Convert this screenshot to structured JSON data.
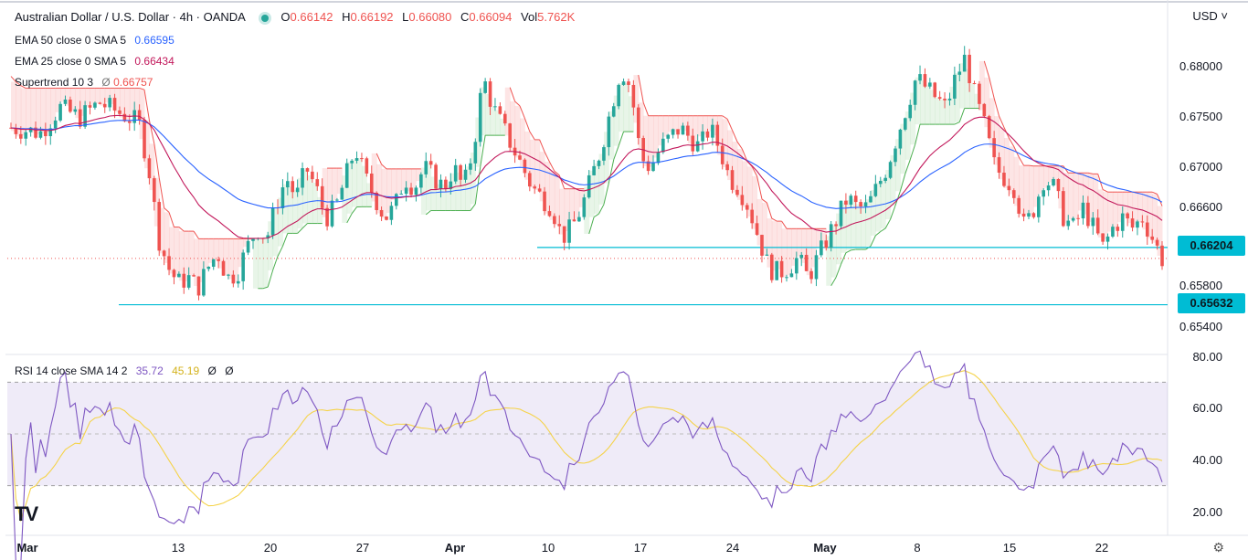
{
  "header": {
    "symbol": "Australian Dollar / U.S. Dollar · 4h · OANDA",
    "open_label": "O",
    "open": "0.66142",
    "high_label": "H",
    "high": "0.66192",
    "low_label": "L",
    "low": "0.66080",
    "close_label": "C",
    "close": "0.66094",
    "vol_label": "Vol",
    "vol": "5.762K",
    "currency": "USD"
  },
  "indicators": {
    "ema50": {
      "label": "EMA 50 close 0 SMA 5",
      "value": "0.66595",
      "color": "#2962ff"
    },
    "ema25": {
      "label": "EMA 25 close 0 SMA 5",
      "value": "0.66434",
      "color": "#c2185b"
    },
    "supertrend": {
      "label": "Supertrend 10 3",
      "value": "0.66757",
      "glyph": "Ø",
      "up_color": "#4caf50",
      "down_color": "#ef5350"
    }
  },
  "rsi": {
    "label": "RSI 14 close SMA 14 2",
    "rsi_value": "35.72",
    "sma_value": "45.19",
    "extra1": "Ø",
    "extra2": "Ø",
    "line_color": "#7e57c2",
    "sma_color": "#f5d34a",
    "band": [
      30,
      70
    ],
    "axis_labels": [
      "80.00",
      "60.00",
      "40.00",
      "20.00"
    ]
  },
  "price_axis": {
    "labels": [
      "0.68000",
      "0.67500",
      "0.67000",
      "0.66600",
      "0.65800",
      "0.65400"
    ],
    "tags": [
      {
        "value": "0.66204",
        "color": "#00bcd4"
      },
      {
        "value": "0.65632",
        "color": "#00bcd4"
      }
    ]
  },
  "time_axis": {
    "labels": [
      {
        "text": "Mar",
        "bold": true
      },
      {
        "text": "13",
        "bold": false
      },
      {
        "text": "20",
        "bold": false
      },
      {
        "text": "27",
        "bold": false
      },
      {
        "text": "Apr",
        "bold": true
      },
      {
        "text": "10",
        "bold": false
      },
      {
        "text": "17",
        "bold": false
      },
      {
        "text": "24",
        "bold": false
      },
      {
        "text": "May",
        "bold": true
      },
      {
        "text": "8",
        "bold": false
      },
      {
        "text": "15",
        "bold": false
      },
      {
        "text": "22",
        "bold": false
      }
    ]
  },
  "chart_data": {
    "type": "candlestick",
    "symbol": "AUD/USD",
    "timeframe": "4h",
    "ylim": [
      0.6525,
      0.683
    ],
    "support_levels": [
      0.66204,
      0.65632
    ],
    "up_color": "#26a69a",
    "down_color": "#ef5350",
    "close_path": [
      [
        0,
        0.674
      ],
      [
        3,
        0.6735
      ],
      [
        5,
        0.676
      ],
      [
        7,
        0.675
      ],
      [
        9,
        0.6765
      ],
      [
        11,
        0.6755
      ],
      [
        13,
        0.6745
      ],
      [
        14,
        0.67
      ],
      [
        15,
        0.663
      ],
      [
        16,
        0.66
      ],
      [
        17,
        0.6585
      ],
      [
        18,
        0.659
      ],
      [
        19,
        0.658
      ],
      [
        20,
        0.66
      ],
      [
        21,
        0.6615
      ],
      [
        22,
        0.659
      ],
      [
        23,
        0.6595
      ],
      [
        24,
        0.662
      ],
      [
        25,
        0.664
      ],
      [
        26,
        0.663
      ],
      [
        27,
        0.6665
      ],
      [
        28,
        0.669
      ],
      [
        29,
        0.667
      ],
      [
        30,
        0.67
      ],
      [
        31,
        0.668
      ],
      [
        32,
        0.665
      ],
      [
        33,
        0.666
      ],
      [
        34,
        0.669
      ],
      [
        35,
        0.672
      ],
      [
        36,
        0.669
      ],
      [
        37,
        0.667
      ],
      [
        38,
        0.665
      ],
      [
        39,
        0.666
      ],
      [
        40,
        0.669
      ],
      [
        41,
        0.668
      ],
      [
        42,
        0.67
      ],
      [
        43,
        0.669
      ],
      [
        44,
        0.668
      ],
      [
        45,
        0.67
      ],
      [
        46,
        0.668
      ],
      [
        47,
        0.672
      ],
      [
        48,
        0.679
      ],
      [
        49,
        0.676
      ],
      [
        50,
        0.674
      ],
      [
        51,
        0.672
      ],
      [
        52,
        0.67
      ],
      [
        53,
        0.668
      ],
      [
        54,
        0.667
      ],
      [
        55,
        0.666
      ],
      [
        56,
        0.663
      ],
      [
        57,
        0.664
      ],
      [
        58,
        0.666
      ],
      [
        59,
        0.669
      ],
      [
        60,
        0.672
      ],
      [
        61,
        0.676
      ],
      [
        62,
        0.68
      ],
      [
        63,
        0.678
      ],
      [
        64,
        0.671
      ],
      [
        65,
        0.67
      ],
      [
        66,
        0.672
      ],
      [
        67,
        0.673
      ],
      [
        68,
        0.674
      ],
      [
        69,
        0.673
      ],
      [
        70,
        0.672
      ],
      [
        71,
        0.674
      ],
      [
        72,
        0.672
      ],
      [
        73,
        0.669
      ],
      [
        74,
        0.668
      ],
      [
        75,
        0.666
      ],
      [
        76,
        0.663
      ],
      [
        77,
        0.66
      ],
      [
        78,
        0.6595
      ],
      [
        79,
        0.66
      ],
      [
        80,
        0.661
      ],
      [
        81,
        0.659
      ],
      [
        82,
        0.661
      ],
      [
        83,
        0.663
      ],
      [
        84,
        0.665
      ],
      [
        85,
        0.667
      ],
      [
        86,
        0.666
      ],
      [
        87,
        0.666
      ],
      [
        88,
        0.668
      ],
      [
        89,
        0.67
      ],
      [
        90,
        0.673
      ],
      [
        91,
        0.676
      ],
      [
        92,
        0.679
      ],
      [
        93,
        0.678
      ],
      [
        94,
        0.677
      ],
      [
        95,
        0.676
      ],
      [
        96,
        0.679
      ],
      [
        97,
        0.681
      ],
      [
        98,
        0.677
      ],
      [
        99,
        0.674
      ],
      [
        100,
        0.67
      ],
      [
        101,
        0.669
      ],
      [
        102,
        0.668
      ],
      [
        103,
        0.664
      ],
      [
        104,
        0.666
      ],
      [
        105,
        0.669
      ],
      [
        106,
        0.668
      ],
      [
        107,
        0.665
      ],
      [
        108,
        0.664
      ],
      [
        109,
        0.666
      ],
      [
        110,
        0.664
      ],
      [
        111,
        0.662
      ],
      [
        112,
        0.664
      ],
      [
        113,
        0.665
      ],
      [
        114,
        0.664
      ],
      [
        115,
        0.665
      ],
      [
        116,
        0.663
      ],
      [
        117,
        0.6609
      ]
    ]
  }
}
